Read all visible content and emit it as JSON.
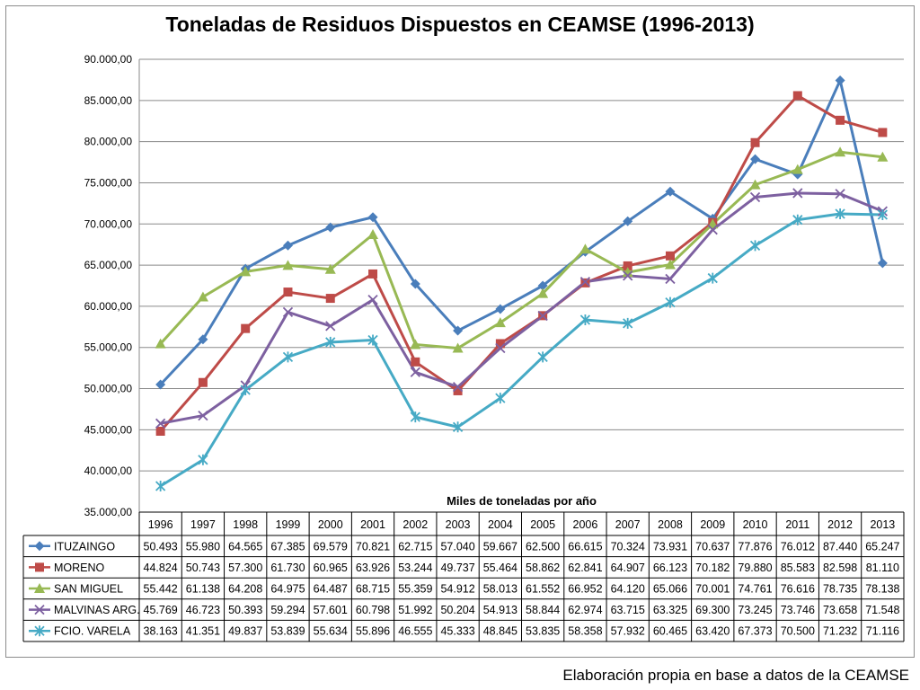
{
  "chart_data": {
    "type": "line",
    "title": "Toneladas de Residuos Dispuestos en CEAMSE (1996-2013)",
    "xlabel": "Miles de toneladas por año",
    "ylabel": "",
    "ylim": [
      35000,
      90000
    ],
    "ytick_step": 5000,
    "y_ticks": [
      "35.000,00",
      "40.000,00",
      "45.000,00",
      "50.000,00",
      "55.000,00",
      "60.000,00",
      "65.000,00",
      "70.000,00",
      "75.000,00",
      "80.000,00",
      "85.000,00",
      "90.000,00"
    ],
    "grid": true,
    "legend": "data-table-below",
    "categories": [
      "1996",
      "1997",
      "1998",
      "1999",
      "2000",
      "2001",
      "2002",
      "2003",
      "2004",
      "2005",
      "2006",
      "2007",
      "2008",
      "2009",
      "2010",
      "2011",
      "2012",
      "2013"
    ],
    "series": [
      {
        "name": "ITUZAINGO",
        "color": "#4a7ebb",
        "marker": "diamond",
        "values": [
          50493,
          55980,
          64565,
          67385,
          69579,
          70821,
          62715,
          57040,
          59667,
          62500,
          66615,
          70324,
          73931,
          70637,
          77876,
          76012,
          87440,
          65247
        ],
        "labels": [
          "50.493",
          "55.980",
          "64.565",
          "67.385",
          "69.579",
          "70.821",
          "62.715",
          "57.040",
          "59.667",
          "62.500",
          "66.615",
          "70.324",
          "73.931",
          "70.637",
          "77.876",
          "76.012",
          "87.440",
          "65.247"
        ]
      },
      {
        "name": "MORENO",
        "color": "#be4b48",
        "marker": "square",
        "values": [
          44824,
          50743,
          57300,
          61730,
          60965,
          63926,
          53244,
          49737,
          55464,
          58862,
          62841,
          64907,
          66123,
          70182,
          79880,
          85583,
          82598,
          81110
        ],
        "labels": [
          "44.824",
          "50.743",
          "57.300",
          "61.730",
          "60.965",
          "63.926",
          "53.244",
          "49.737",
          "55.464",
          "58.862",
          "62.841",
          "64.907",
          "66.123",
          "70.182",
          "79.880",
          "85.583",
          "82.598",
          "81.110"
        ]
      },
      {
        "name": "SAN MIGUEL",
        "color": "#98b954",
        "marker": "triangle",
        "values": [
          55442,
          61138,
          64208,
          64975,
          64487,
          68715,
          55359,
          54912,
          58013,
          61552,
          66952,
          64120,
          65066,
          70001,
          74761,
          76616,
          78735,
          78138
        ],
        "labels": [
          "55.442",
          "61.138",
          "64.208",
          "64.975",
          "64.487",
          "68.715",
          "55.359",
          "54.912",
          "58.013",
          "61.552",
          "66.952",
          "64.120",
          "65.066",
          "70.001",
          "74.761",
          "76.616",
          "78.735",
          "78.138"
        ]
      },
      {
        "name": "MALVINAS ARG.",
        "color": "#7d60a0",
        "marker": "x",
        "values": [
          45769,
          46723,
          50393,
          59294,
          57601,
          60798,
          51992,
          50204,
          54913,
          58844,
          62974,
          63715,
          63325,
          69300,
          73245,
          73746,
          73658,
          71548
        ],
        "labels": [
          "45.769",
          "46.723",
          "50.393",
          "59.294",
          "57.601",
          "60.798",
          "51.992",
          "50.204",
          "54.913",
          "58.844",
          "62.974",
          "63.715",
          "63.325",
          "69.300",
          "73.245",
          "73.746",
          "73.658",
          "71.548"
        ]
      },
      {
        "name": "FCIO. VARELA",
        "color": "#46aac5",
        "marker": "asterisk",
        "values": [
          38163,
          41351,
          49837,
          53839,
          55634,
          55896,
          46555,
          45333,
          48845,
          53835,
          58358,
          57932,
          60465,
          63420,
          67373,
          70500,
          71232,
          71116
        ],
        "labels": [
          "38.163",
          "41.351",
          "49.837",
          "53.839",
          "55.634",
          "55.896",
          "46.555",
          "45.333",
          "48.845",
          "53.835",
          "58.358",
          "57.932",
          "60.465",
          "63.420",
          "67.373",
          "70.500",
          "71.232",
          "71.116"
        ]
      }
    ]
  },
  "footer": {
    "source_note": "Elaboración propia en base a datos de la CEAMSE"
  }
}
